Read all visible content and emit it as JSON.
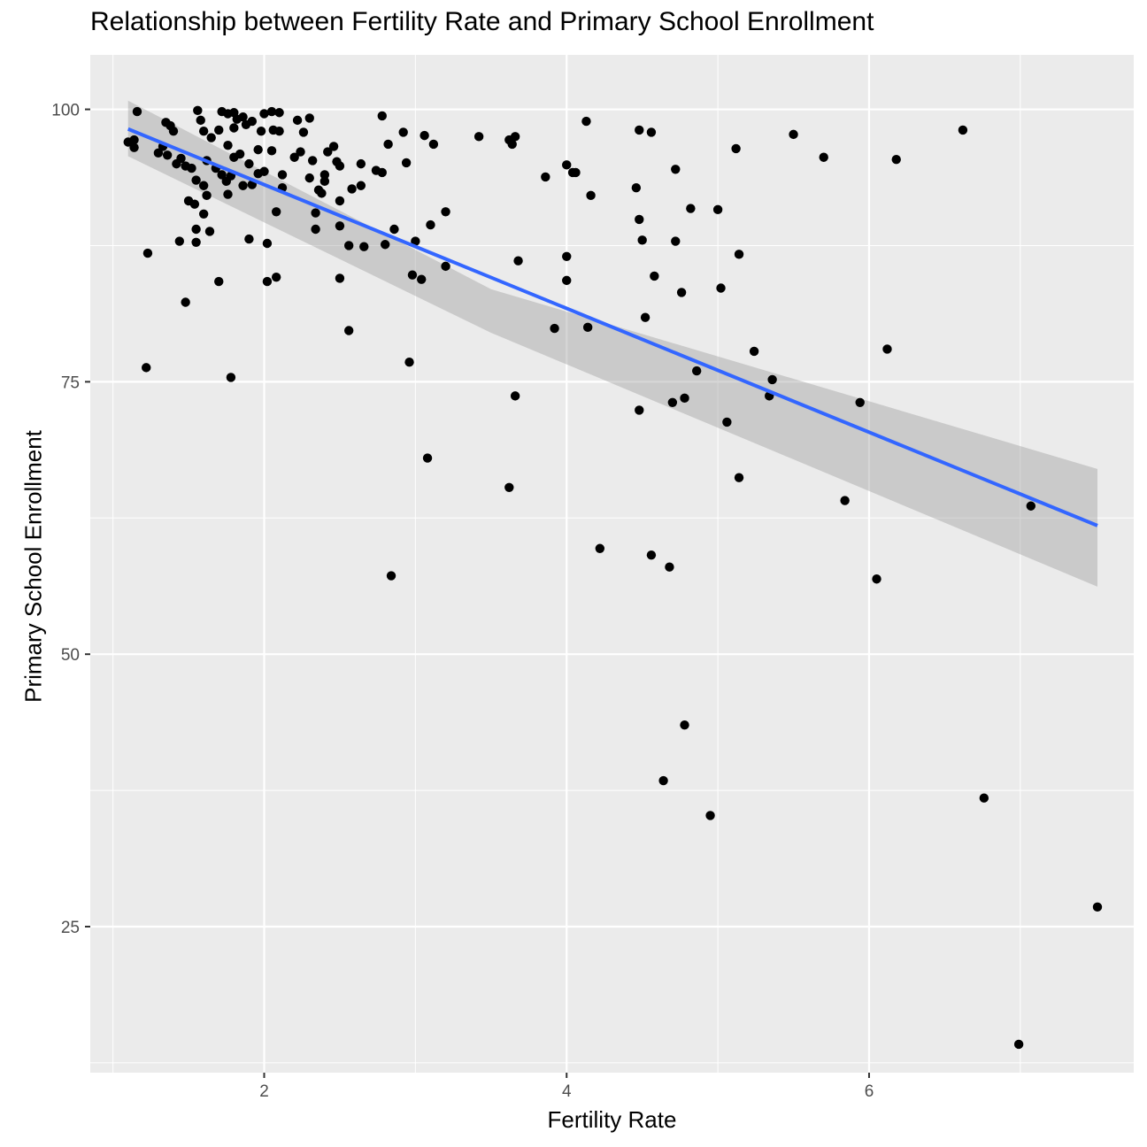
{
  "chart_data": {
    "type": "scatter",
    "title": "Relationship between Fertility Rate and Primary School Enrollment",
    "xlabel": "Fertility Rate",
    "ylabel": "Primary School Enrollment",
    "xlim": [
      0.85,
      7.75
    ],
    "ylim": [
      11.6,
      105.0
    ],
    "x_ticks": [
      2,
      4,
      6
    ],
    "y_ticks": [
      25,
      50,
      75,
      100
    ],
    "grid": true,
    "legend": "none",
    "colors": {
      "points": "#000000",
      "fit_line": "#3366FF",
      "ribbon": "#999999",
      "panel": "#EBEBEB",
      "grid": "#FFFFFF"
    },
    "points": [
      [
        1.16,
        99.8
      ],
      [
        1.14,
        97.2
      ],
      [
        1.1,
        97.0
      ],
      [
        1.14,
        96.5
      ],
      [
        1.23,
        86.8
      ],
      [
        1.22,
        76.3
      ],
      [
        1.35,
        98.8
      ],
      [
        1.38,
        98.5
      ],
      [
        1.33,
        96.6
      ],
      [
        1.3,
        96.0
      ],
      [
        1.36,
        95.8
      ],
      [
        1.4,
        98.0
      ],
      [
        1.42,
        95.0
      ],
      [
        1.45,
        95.5
      ],
      [
        1.48,
        94.8
      ],
      [
        1.52,
        94.6
      ],
      [
        1.55,
        93.5
      ],
      [
        1.5,
        91.6
      ],
      [
        1.54,
        91.3
      ],
      [
        1.6,
        93.0
      ],
      [
        1.62,
        92.1
      ],
      [
        1.6,
        90.4
      ],
      [
        1.55,
        89.0
      ],
      [
        1.64,
        88.8
      ],
      [
        1.44,
        87.9
      ],
      [
        1.55,
        87.8
      ],
      [
        1.48,
        82.3
      ],
      [
        1.56,
        99.9
      ],
      [
        1.58,
        99.0
      ],
      [
        1.6,
        98.0
      ],
      [
        1.65,
        97.4
      ],
      [
        1.7,
        98.1
      ],
      [
        1.62,
        95.3
      ],
      [
        1.68,
        94.6
      ],
      [
        1.72,
        94.0
      ],
      [
        1.75,
        93.4
      ],
      [
        1.7,
        84.2
      ],
      [
        1.72,
        99.8
      ],
      [
        1.76,
        99.6
      ],
      [
        1.8,
        99.7
      ],
      [
        1.82,
        99.1
      ],
      [
        1.86,
        99.3
      ],
      [
        1.8,
        98.3
      ],
      [
        1.88,
        98.6
      ],
      [
        1.92,
        98.9
      ],
      [
        1.76,
        96.7
      ],
      [
        1.8,
        95.6
      ],
      [
        1.84,
        95.9
      ],
      [
        1.9,
        95.0
      ],
      [
        1.78,
        93.9
      ],
      [
        1.86,
        93.0
      ],
      [
        1.92,
        93.1
      ],
      [
        1.76,
        92.2
      ],
      [
        1.9,
        88.1
      ],
      [
        1.78,
        75.4
      ],
      [
        1.98,
        98.0
      ],
      [
        2.0,
        99.6
      ],
      [
        2.05,
        99.8
      ],
      [
        2.1,
        99.7
      ],
      [
        2.06,
        98.1
      ],
      [
        2.1,
        98.0
      ],
      [
        1.96,
        96.3
      ],
      [
        2.05,
        96.2
      ],
      [
        2.0,
        94.3
      ],
      [
        1.96,
        94.1
      ],
      [
        2.12,
        94.0
      ],
      [
        2.12,
        92.8
      ],
      [
        2.08,
        90.6
      ],
      [
        2.02,
        87.7
      ],
      [
        2.08,
        84.6
      ],
      [
        2.02,
        84.2
      ],
      [
        2.2,
        95.6
      ],
      [
        2.24,
        96.1
      ],
      [
        2.22,
        99.0
      ],
      [
        2.3,
        99.2
      ],
      [
        2.26,
        97.9
      ],
      [
        2.32,
        95.3
      ],
      [
        2.3,
        93.7
      ],
      [
        2.36,
        92.6
      ],
      [
        2.38,
        92.3
      ],
      [
        2.4,
        94.0
      ],
      [
        2.4,
        93.4
      ],
      [
        2.42,
        96.1
      ],
      [
        2.46,
        96.6
      ],
      [
        2.34,
        90.5
      ],
      [
        2.34,
        89.0
      ],
      [
        2.48,
        95.2
      ],
      [
        2.5,
        94.8
      ],
      [
        2.5,
        91.6
      ],
      [
        2.5,
        89.3
      ],
      [
        2.5,
        84.5
      ],
      [
        2.56,
        87.5
      ],
      [
        2.56,
        79.7
      ],
      [
        2.58,
        92.7
      ],
      [
        2.64,
        95.0
      ],
      [
        2.64,
        93.0
      ],
      [
        2.66,
        87.4
      ],
      [
        2.74,
        94.4
      ],
      [
        2.78,
        94.2
      ],
      [
        2.78,
        99.4
      ],
      [
        2.82,
        96.8
      ],
      [
        2.8,
        87.6
      ],
      [
        2.86,
        89.0
      ],
      [
        2.84,
        57.2
      ],
      [
        2.92,
        97.9
      ],
      [
        2.94,
        95.1
      ],
      [
        2.96,
        76.8
      ],
      [
        2.98,
        84.8
      ],
      [
        3.0,
        87.9
      ],
      [
        3.04,
        84.4
      ],
      [
        3.06,
        97.6
      ],
      [
        3.12,
        96.8
      ],
      [
        3.1,
        89.4
      ],
      [
        3.08,
        68.0
      ],
      [
        3.2,
        90.6
      ],
      [
        3.2,
        85.6
      ],
      [
        3.42,
        97.5
      ],
      [
        3.62,
        97.2
      ],
      [
        3.64,
        96.8
      ],
      [
        3.66,
        97.5
      ],
      [
        3.68,
        86.1
      ],
      [
        3.66,
        73.7
      ],
      [
        3.62,
        65.3
      ],
      [
        3.86,
        93.8
      ],
      [
        3.92,
        79.9
      ],
      [
        4.0,
        94.9
      ],
      [
        4.04,
        94.2
      ],
      [
        4.06,
        94.2
      ],
      [
        4.0,
        86.5
      ],
      [
        4.0,
        84.3
      ],
      [
        4.13,
        98.9
      ],
      [
        4.14,
        80.0
      ],
      [
        4.16,
        92.1
      ],
      [
        4.22,
        59.7
      ],
      [
        4.46,
        92.8
      ],
      [
        4.48,
        89.9
      ],
      [
        4.48,
        98.1
      ],
      [
        4.5,
        88.0
      ],
      [
        4.52,
        80.9
      ],
      [
        4.48,
        72.4
      ],
      [
        4.56,
        97.9
      ],
      [
        4.58,
        84.7
      ],
      [
        4.56,
        59.1
      ],
      [
        4.64,
        38.4
      ],
      [
        4.68,
        58.0
      ],
      [
        4.7,
        73.1
      ],
      [
        4.72,
        94.5
      ],
      [
        4.72,
        87.9
      ],
      [
        4.76,
        83.2
      ],
      [
        4.78,
        73.5
      ],
      [
        4.78,
        43.5
      ],
      [
        4.82,
        90.9
      ],
      [
        4.86,
        76.0
      ],
      [
        4.95,
        35.2
      ],
      [
        5.0,
        90.8
      ],
      [
        5.02,
        83.6
      ],
      [
        5.06,
        71.3
      ],
      [
        5.12,
        96.4
      ],
      [
        5.14,
        86.7
      ],
      [
        5.14,
        66.2
      ],
      [
        5.24,
        77.8
      ],
      [
        5.34,
        73.7
      ],
      [
        5.36,
        75.2
      ],
      [
        5.5,
        97.7
      ],
      [
        5.7,
        95.6
      ],
      [
        5.84,
        64.1
      ],
      [
        5.94,
        73.1
      ],
      [
        6.05,
        56.9
      ],
      [
        6.12,
        78.0
      ],
      [
        6.18,
        95.4
      ],
      [
        6.62,
        98.1
      ],
      [
        6.76,
        36.8
      ],
      [
        6.99,
        14.2
      ],
      [
        7.07,
        63.6
      ],
      [
        7.51,
        26.8
      ]
    ],
    "fit": {
      "x0": 1.1,
      "y0": 98.2,
      "x1": 7.51,
      "y1": 61.8
    },
    "band": {
      "x": [
        1.1,
        3.5,
        7.51
      ],
      "upper": [
        100.8,
        83.5,
        67.0
      ],
      "lower": [
        95.7,
        79.5,
        56.2
      ]
    }
  }
}
